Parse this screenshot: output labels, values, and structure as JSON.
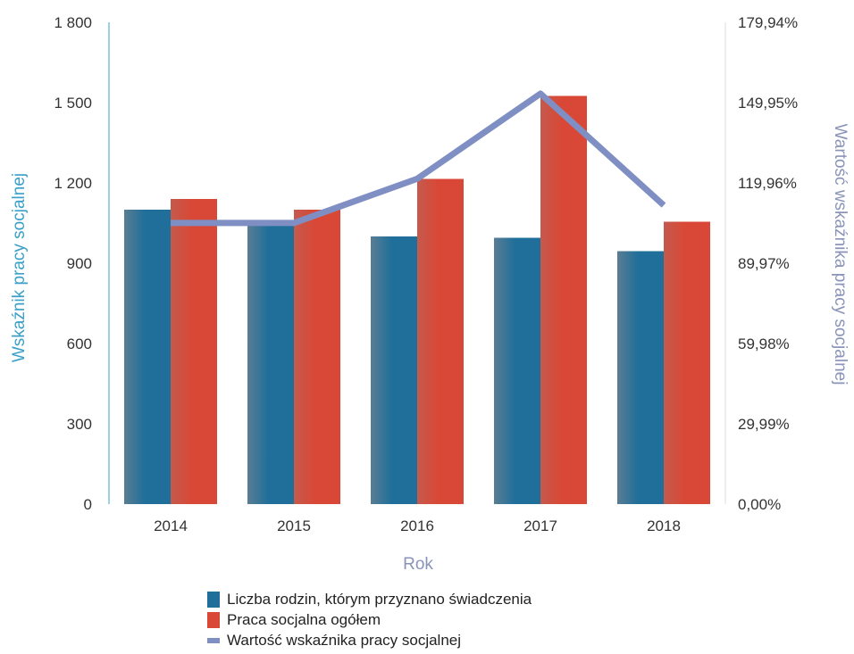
{
  "chart_data": {
    "type": "bar",
    "categories": [
      "2014",
      "2015",
      "2016",
      "2017",
      "2018"
    ],
    "series": [
      {
        "name": "Liczba rodzin, którym przyznano świadczenia",
        "values": [
          1100,
          1050,
          1000,
          995,
          945
        ],
        "axis": "left"
      },
      {
        "name": "Praca socjalna ogółem",
        "values": [
          1140,
          1100,
          1215,
          1525,
          1055
        ],
        "axis": "left"
      },
      {
        "name": "Wartość wskaźnika pracy socjalnej",
        "type": "line",
        "axis": "right",
        "values": [
          105.0,
          105.0,
          121.5,
          153.3,
          111.6
        ]
      }
    ],
    "y_left": {
      "label": "Wskaźnik pracy socjalnej",
      "ticks": [
        "0",
        "300",
        "600",
        "900",
        "1 200",
        "1 500",
        "1 800"
      ],
      "ylim": [
        0,
        1800
      ]
    },
    "y_right": {
      "label": "Wartość wskaźnika pracy socjalnej",
      "ticks": [
        "0,00%",
        "29,99%",
        "59,98%",
        "89,97%",
        "119,96%",
        "149,95%",
        "179,94%"
      ],
      "ylim": [
        0,
        179.94
      ]
    },
    "xlabel": "Rok",
    "legend_position": "bottom",
    "grid": false
  },
  "colors": {
    "series1": "#1f6f9a",
    "series2": "#d94836",
    "line": "#7f8fc4",
    "left_axis": "#3aa0c8",
    "right_axis": "#8a94b8",
    "xlabel": "#8a94b8"
  }
}
